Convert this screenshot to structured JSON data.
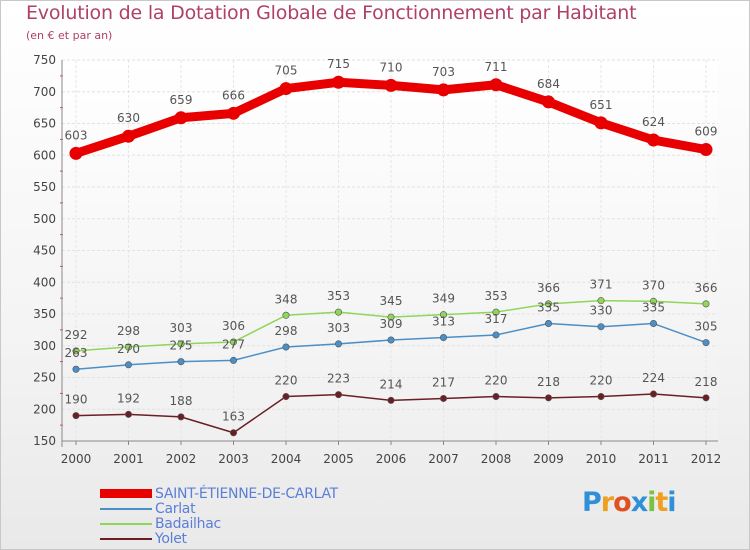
{
  "title": "Evolution de la Dotation Globale de Fonctionnement par Habitant",
  "subtitle": "(en € et par an)",
  "logo": {
    "text": "Proxiti",
    "colors": [
      "#2f8fd9",
      "#f0a020",
      "#e05020",
      "#2f8fd9",
      "#7bc142",
      "#f0a020",
      "#2f8fd9"
    ]
  },
  "chart_data": {
    "type": "line",
    "title": "Evolution de la Dotation Globale de Fonctionnement par Habitant",
    "subtitle": "(en € et par an)",
    "xlabel": "",
    "ylabel": "",
    "x": [
      "2000",
      "2001",
      "2002",
      "2003",
      "2004",
      "2005",
      "2006",
      "2007",
      "2008",
      "2009",
      "2010",
      "2011",
      "2012"
    ],
    "ylim": [
      150,
      750
    ],
    "yticks": [
      150,
      200,
      250,
      300,
      350,
      400,
      450,
      500,
      550,
      600,
      650,
      700,
      750
    ],
    "grid": true,
    "legend_position": "bottom-left",
    "series": [
      {
        "name": "SAINT-ÉTIENNE-DE-CARLAT",
        "color": "#e80000",
        "values": [
          603,
          630,
          659,
          666,
          705,
          715,
          710,
          703,
          711,
          684,
          651,
          624,
          609
        ]
      },
      {
        "name": "Carlat",
        "color": "#4a8fc8",
        "values": [
          263,
          270,
          275,
          277,
          298,
          303,
          309,
          313,
          317,
          335,
          330,
          335,
          305
        ]
      },
      {
        "name": "Badailhac",
        "color": "#8fd65a",
        "values": [
          292,
          298,
          303,
          306,
          348,
          353,
          345,
          349,
          353,
          366,
          371,
          370,
          366
        ]
      },
      {
        "name": "Yolet",
        "color": "#6a1f24",
        "values": [
          190,
          192,
          188,
          163,
          220,
          223,
          214,
          217,
          220,
          218,
          220,
          224,
          218
        ]
      }
    ]
  }
}
